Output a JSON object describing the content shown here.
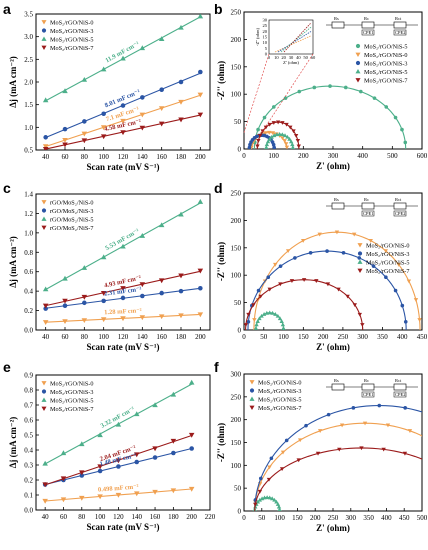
{
  "chart_data": [
    {
      "panel": "a",
      "type": "scatter",
      "xlabel": "Scan rate (mV S⁻¹)",
      "ylabel": "Δj (mA cm⁻²)",
      "xlim": [
        30,
        210
      ],
      "ylim": [
        0.5,
        3.5
      ],
      "xticks": [
        40,
        60,
        80,
        100,
        120,
        140,
        160,
        180,
        200
      ],
      "yticks": [
        0.5,
        1.0,
        1.5,
        2.0,
        2.5,
        3.0,
        3.5
      ],
      "legend_position": "top-left",
      "series": [
        {
          "name": "MoS₂/rGO/NiS-0",
          "color": "#f0a050",
          "marker": "triangle-down",
          "x": [
            40,
            60,
            80,
            100,
            120,
            140,
            160,
            180,
            200
          ],
          "y": [
            0.58,
            0.72,
            0.86,
            1.0,
            1.14,
            1.28,
            1.42,
            1.56,
            1.72
          ],
          "slope_label": "7.1 mF cm⁻²"
        },
        {
          "name": "MoS₂/rGO/NiS-3",
          "color": "#2b55a5",
          "marker": "circle",
          "x": [
            40,
            60,
            80,
            100,
            120,
            140,
            160,
            180,
            200
          ],
          "y": [
            0.78,
            0.96,
            1.13,
            1.3,
            1.48,
            1.66,
            1.83,
            2.0,
            2.22
          ],
          "slope_label": "8.01 mF cm⁻²"
        },
        {
          "name": "MoS₂/rGO/NiS-5",
          "color": "#4caf8a",
          "marker": "triangle-up",
          "x": [
            40,
            60,
            80,
            100,
            120,
            140,
            160,
            180,
            200
          ],
          "y": [
            1.6,
            1.8,
            2.05,
            2.28,
            2.52,
            2.75,
            2.95,
            3.2,
            3.45
          ],
          "slope_label": "11.9 mF cm⁻²"
        },
        {
          "name": "MoS₂/rGO/NiS-7",
          "color": "#9b1b1b",
          "marker": "triangle-down",
          "x": [
            40,
            60,
            80,
            100,
            120,
            140,
            160,
            180,
            200
          ],
          "y": [
            0.52,
            0.62,
            0.71,
            0.8,
            0.89,
            0.99,
            1.08,
            1.17,
            1.28
          ],
          "slope_label": "4.58 mF cm⁻²"
        }
      ]
    },
    {
      "panel": "b",
      "type": "scatter",
      "xlabel": "Z' (ohm)",
      "ylabel": "-Z'' (ohm)",
      "xlim": [
        0,
        600
      ],
      "ylim": [
        0,
        250
      ],
      "xticks": [
        0,
        100,
        200,
        300,
        400,
        500,
        600
      ],
      "yticks": [
        0,
        50,
        100,
        150,
        200,
        250
      ],
      "legend_position": "right",
      "series": [
        {
          "name": "MoS₂/rGO/NiS-5",
          "color": "#4caf8a",
          "marker": "circle",
          "center": 290,
          "radius": 255,
          "depression": 0.45
        },
        {
          "name": "MoS₂/rGO/NiS-0",
          "color": "#f0a050",
          "marker": "triangle-down",
          "center": 85,
          "radius": 60,
          "depression": 0.5
        },
        {
          "name": "MoS₂/rGO/NiS-3",
          "color": "#2b55a5",
          "marker": "circle",
          "center": 60,
          "radius": 42,
          "depression": 0.6
        },
        {
          "name": "MoS₂/rGO/NiS-5",
          "color": "#4caf8a",
          "marker": "triangle-up",
          "center": 120,
          "radius": 45,
          "depression": 0.6
        },
        {
          "name": "MoS₂/rGO/NiS-7",
          "color": "#9b1b1b",
          "marker": "triangle-down",
          "center": 115,
          "radius": 70,
          "depression": 0.7
        }
      ],
      "inset": {
        "xlabel": "Z' (ohm)",
        "ylabel": "-Z'' (ohm)",
        "xticks": [
          0,
          10,
          20,
          30,
          40,
          50,
          60
        ],
        "yticks": [
          0,
          5,
          10,
          15,
          20,
          25,
          30
        ]
      },
      "circuit": [
        "Rs",
        "Rc",
        "Rct",
        "CPE1",
        "CPE2"
      ]
    },
    {
      "panel": "c",
      "type": "scatter",
      "xlabel": "Scan rate (mV S⁻¹)",
      "ylabel": "Δj (mA cm⁻²)",
      "xlim": [
        30,
        210
      ],
      "ylim": [
        0,
        1.4
      ],
      "xticks": [
        40,
        60,
        80,
        100,
        120,
        140,
        160,
        180,
        200
      ],
      "yticks": [
        0.0,
        0.2,
        0.4,
        0.6,
        0.8,
        1.0,
        1.2,
        1.4
      ],
      "legend_position": "top-left",
      "series": [
        {
          "name": "rGO/MoS₂/NiS-0",
          "color": "#f0a050",
          "marker": "triangle-down",
          "x": [
            40,
            60,
            80,
            100,
            120,
            140,
            160,
            180,
            200
          ],
          "y": [
            0.08,
            0.09,
            0.1,
            0.11,
            0.12,
            0.13,
            0.14,
            0.15,
            0.16
          ],
          "slope_label": "1.28 mF cm⁻²"
        },
        {
          "name": "rGO/MoS₂/NiS-3",
          "color": "#2b55a5",
          "marker": "circle",
          "x": [
            40,
            60,
            80,
            100,
            120,
            140,
            160,
            180,
            200
          ],
          "y": [
            0.22,
            0.25,
            0.28,
            0.3,
            0.33,
            0.35,
            0.38,
            0.4,
            0.43
          ],
          "slope_label": "2.31 mF cm⁻²"
        },
        {
          "name": "rGO/MoS₂/NiS-5",
          "color": "#4caf8a",
          "marker": "triangle-up",
          "x": [
            40,
            60,
            80,
            100,
            120,
            140,
            160,
            180,
            200
          ],
          "y": [
            0.42,
            0.53,
            0.64,
            0.75,
            0.86,
            0.97,
            1.08,
            1.19,
            1.32
          ],
          "slope_label": "5.53 mF cm⁻²"
        },
        {
          "name": "rGO/MoS₂/NiS-7",
          "color": "#9b1b1b",
          "marker": "triangle-down",
          "x": [
            40,
            60,
            80,
            100,
            120,
            140,
            160,
            180,
            200
          ],
          "y": [
            0.25,
            0.3,
            0.34,
            0.38,
            0.43,
            0.47,
            0.51,
            0.56,
            0.61
          ],
          "slope_label": "4.93 mF cm⁻²"
        }
      ]
    },
    {
      "panel": "d",
      "type": "scatter",
      "xlabel": "Z' (ohm)",
      "ylabel": "-Z'' (ohm)",
      "xlim": [
        0,
        450
      ],
      "ylim": [
        0,
        250
      ],
      "xticks": [
        0,
        50,
        100,
        150,
        200,
        250,
        300,
        350,
        400,
        450
      ],
      "yticks": [
        0,
        50,
        100,
        150,
        200,
        250
      ],
      "legend_position": "top-right",
      "series": [
        {
          "name": "MoS₂/rGO/NiS-0",
          "color": "#f0a050",
          "marker": "triangle-down",
          "center": 235,
          "radius": 210,
          "depression": 0.85
        },
        {
          "name": "MoS₂/rGO/NiS-3",
          "color": "#2b55a5",
          "marker": "circle",
          "center": 210,
          "radius": 200,
          "depression": 0.72
        },
        {
          "name": "MoS₂/rGO/NiS-5",
          "color": "#4caf8a",
          "marker": "triangle-up",
          "center": 65,
          "radius": 35,
          "depression": 0.9
        },
        {
          "name": "MoS₂/rGO/NiS-7",
          "color": "#9b1b1b",
          "marker": "triangle-down",
          "center": 152,
          "radius": 148,
          "depression": 0.62
        }
      ],
      "circuit": [
        "Rs",
        "Rc",
        "Rct",
        "CPE1",
        "CPE2"
      ]
    },
    {
      "panel": "e",
      "type": "scatter",
      "xlabel": "Scan rate (mV S⁻¹)",
      "ylabel": "Δj (mA cm⁻²)",
      "xlim": [
        30,
        220
      ],
      "ylim": [
        0,
        0.9
      ],
      "xticks": [
        40,
        60,
        80,
        100,
        120,
        140,
        160,
        180,
        200,
        220
      ],
      "yticks": [
        0.0,
        0.1,
        0.2,
        0.3,
        0.4,
        0.5,
        0.6,
        0.7,
        0.8,
        0.9
      ],
      "legend_position": "top-left",
      "series": [
        {
          "name": "MoS₂/rGO/NiS-0",
          "color": "#f0a050",
          "marker": "triangle-down",
          "x": [
            40,
            60,
            80,
            100,
            120,
            140,
            160,
            180,
            200
          ],
          "y": [
            0.06,
            0.07,
            0.08,
            0.09,
            0.1,
            0.11,
            0.12,
            0.13,
            0.14
          ],
          "slope_label": "0.498 mF cm⁻²"
        },
        {
          "name": "MoS₂/rGO/NiS-3",
          "color": "#2b55a5",
          "marker": "circle",
          "x": [
            40,
            60,
            80,
            100,
            120,
            140,
            160,
            180,
            200
          ],
          "y": [
            0.17,
            0.2,
            0.23,
            0.26,
            0.29,
            0.32,
            0.35,
            0.38,
            0.41
          ],
          "slope_label": "1.48 mF cm⁻²"
        },
        {
          "name": "MoS₂/rGO/NiS-5",
          "color": "#4caf8a",
          "marker": "triangle-up",
          "x": [
            40,
            60,
            80,
            100,
            120,
            140,
            160,
            180,
            200
          ],
          "y": [
            0.31,
            0.38,
            0.44,
            0.5,
            0.57,
            0.64,
            0.7,
            0.77,
            0.85
          ],
          "slope_label": "3.32 mF cm⁻²"
        },
        {
          "name": "MoS₂/rGO/NiS-7",
          "color": "#9b1b1b",
          "marker": "triangle-down",
          "x": [
            40,
            60,
            80,
            100,
            120,
            140,
            160,
            180,
            200
          ],
          "y": [
            0.17,
            0.21,
            0.25,
            0.29,
            0.33,
            0.37,
            0.41,
            0.46,
            0.5
          ],
          "slope_label": "2.04 mF cm⁻²"
        }
      ]
    },
    {
      "panel": "f",
      "type": "scatter",
      "xlabel": "Z' (ohm)",
      "ylabel": "-Z'' (ohm)",
      "xlim": [
        0,
        500
      ],
      "ylim": [
        0,
        300
      ],
      "xticks": [
        0,
        50,
        100,
        150,
        200,
        250,
        300,
        350,
        400,
        450,
        500
      ],
      "yticks": [
        0,
        50,
        100,
        150,
        200,
        250,
        300
      ],
      "legend_position": "top-left",
      "series": [
        {
          "name": "MoS₂/rGO/NiS-0",
          "color": "#f0a050",
          "marker": "triangle-down",
          "center": 340,
          "radius": 310,
          "depression": 0.62
        },
        {
          "name": "MoS₂/rGO/NiS-3",
          "color": "#2b55a5",
          "marker": "circle",
          "center": 380,
          "radius": 350,
          "depression": 0.66
        },
        {
          "name": "MoS₂/rGO/NiS-5",
          "color": "#4caf8a",
          "marker": "triangle-up",
          "center": 65,
          "radius": 35,
          "depression": 0.85
        },
        {
          "name": "MoS₂/rGO/NiS-7",
          "color": "#9b1b1b",
          "marker": "triangle-down",
          "center": 330,
          "radius": 300,
          "depression": 0.46
        }
      ],
      "circuit": [
        "Rs",
        "Rc",
        "Rct",
        "CPE1",
        "CPE2"
      ]
    }
  ]
}
